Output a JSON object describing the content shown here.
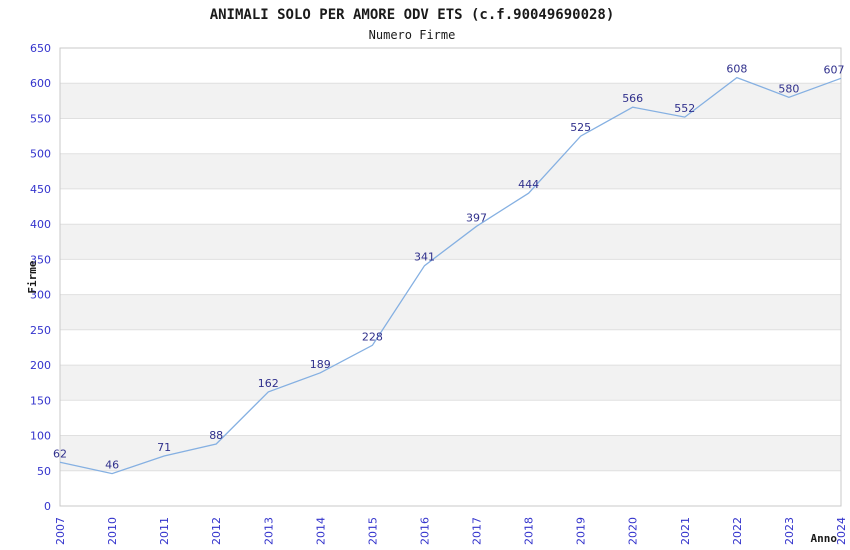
{
  "header": {
    "title": "ANIMALI SOLO PER AMORE ODV ETS (c.f.90049690028)",
    "subtitle": "Numero Firme"
  },
  "chart_data": {
    "type": "line",
    "title": "ANIMALI SOLO PER AMORE ODV ETS (c.f.90049690028)",
    "subtitle": "Numero Firme",
    "xlabel": "Anno",
    "ylabel": "Firme",
    "categories": [
      "2007",
      "2010",
      "2011",
      "2012",
      "2013",
      "2014",
      "2015",
      "2016",
      "2017",
      "2018",
      "2019",
      "2020",
      "2021",
      "2022",
      "2023",
      "2024"
    ],
    "values": [
      62,
      46,
      71,
      88,
      162,
      189,
      228,
      341,
      397,
      444,
      525,
      566,
      552,
      608,
      580,
      607
    ],
    "ylim": [
      0,
      650
    ],
    "ytick_step": 50,
    "grid": true,
    "legend_visible": false,
    "data_labels_visible": true,
    "colors": {
      "line": "#85b0e2",
      "data_label": "#30308c",
      "tick_label": "#3333cc",
      "axis_title_text": "#1a1a1a",
      "title_text": "#1a1a1a",
      "band_gray": "#f2f2f2",
      "band_white": "#ffffff",
      "gridline": "#e0e0e0",
      "plot_border": "#c9c9c9",
      "background": "#ffffff"
    }
  }
}
